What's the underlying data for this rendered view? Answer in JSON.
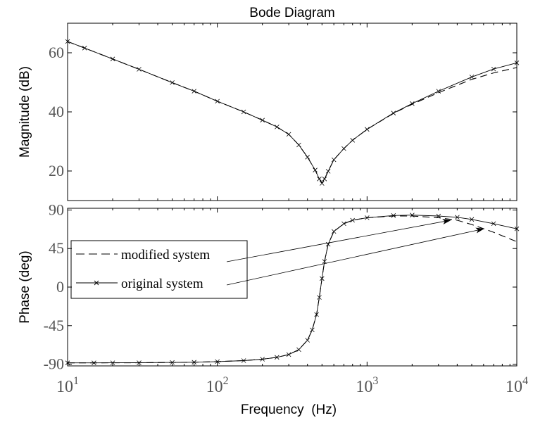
{
  "chart_data": {
    "type": "line",
    "title": "Bode Diagram",
    "xlabel": "Frequency  (Hz)",
    "x_scale": "log",
    "xlim": [
      10,
      10000
    ],
    "x_ticks": [
      {
        "value": 10,
        "base": "10",
        "exp": "1"
      },
      {
        "value": 100,
        "base": "10",
        "exp": "2"
      },
      {
        "value": 1000,
        "base": "10",
        "exp": "3"
      },
      {
        "value": 10000,
        "base": "10",
        "exp": "4"
      }
    ],
    "grid": false,
    "panels": [
      {
        "id": "magnitude",
        "ylabel": "Magnitude (dB)",
        "ylim": [
          10,
          70
        ],
        "y_ticks": [
          20,
          40,
          60
        ],
        "y_tick_labels": [
          "20",
          "40",
          "60"
        ],
        "series": [
          {
            "name": "modified system",
            "style": "dashed",
            "x": [
              10,
              13,
              20,
              30,
              50,
              70,
              100,
              150,
              200,
              250,
              300,
              350,
              400,
              450,
              480,
              500,
              520,
              550,
              600,
              700,
              800,
              1000,
              1500,
              2000,
              3000,
              5000,
              7000,
              10000
            ],
            "y": [
              63.8,
              61.6,
              57.9,
              54.4,
              49.9,
              47.0,
              43.6,
              40.0,
              37.2,
              34.9,
              32.4,
              28.8,
              24.7,
              20.3,
              17.3,
              16.0,
              17.3,
              19.9,
              23.8,
              27.6,
              30.4,
              34.1,
              39.5,
              42.6,
              46.5,
              51.0,
              53.2,
              55.0
            ]
          },
          {
            "name": "original system",
            "style": "solid",
            "marker": "x",
            "x": [
              10,
              13,
              20,
              30,
              50,
              70,
              100,
              150,
              200,
              250,
              300,
              350,
              400,
              450,
              480,
              500,
              520,
              550,
              600,
              700,
              800,
              1000,
              1500,
              2000,
              3000,
              5000,
              7000,
              10000
            ],
            "y": [
              63.8,
              61.6,
              57.9,
              54.4,
              49.9,
              47.0,
              43.6,
              40.0,
              37.2,
              34.9,
              32.4,
              28.8,
              24.7,
              20.3,
              17.3,
              15.8,
              17.3,
              19.9,
              23.8,
              27.6,
              30.4,
              34.1,
              39.6,
              42.8,
              47.0,
              51.8,
              54.5,
              56.6
            ]
          }
        ]
      },
      {
        "id": "phase",
        "ylabel": "Phase (deg)",
        "ylim": [
          -92,
          92
        ],
        "y_ticks": [
          -90,
          -45,
          0,
          45,
          90
        ],
        "y_tick_labels": [
          "-90",
          "-45",
          "0",
          "45",
          "90"
        ],
        "series": [
          {
            "name": "modified system",
            "style": "dashed",
            "x": [
              10,
              15,
              20,
              30,
              50,
              70,
              100,
              150,
              200,
              250,
              300,
              350,
              400,
              430,
              460,
              480,
              500,
              520,
              550,
              600,
              700,
              800,
              1000,
              1500,
              2000,
              3000,
              4000,
              5000,
              7000,
              10000
            ],
            "y": [
              -88.5,
              -88.5,
              -88.4,
              -88.3,
              -88.0,
              -87.7,
              -87.0,
              -85.8,
              -84.2,
              -82.0,
              -78.8,
              -73.0,
              -62.0,
              -50.0,
              -32.0,
              -12.0,
              10.0,
              30.0,
              50.0,
              65.0,
              74.0,
              78.0,
              81.0,
              83.0,
              83.0,
              81.0,
              78.0,
              73.0,
              64.0,
              53.0
            ]
          },
          {
            "name": "original system",
            "style": "solid",
            "marker": "x",
            "x": [
              10,
              15,
              20,
              30,
              50,
              70,
              100,
              150,
              200,
              250,
              300,
              350,
              400,
              430,
              460,
              480,
              500,
              520,
              550,
              600,
              700,
              800,
              1000,
              1500,
              2000,
              3000,
              4000,
              5000,
              7000,
              10000
            ],
            "y": [
              -88.5,
              -88.5,
              -88.4,
              -88.3,
              -88.0,
              -87.7,
              -87.0,
              -85.8,
              -84.2,
              -82.0,
              -78.8,
              -73.0,
              -62.0,
              -50.0,
              -32.0,
              -12.0,
              10.0,
              30.0,
              50.0,
              65.0,
              74.0,
              78.0,
              81.0,
              83.5,
              84.0,
              83.0,
              81.5,
              79.0,
              74.0,
              68.0
            ]
          }
        ]
      }
    ],
    "legend": {
      "placement": "left, phase panel",
      "entries": [
        {
          "label": "modified system",
          "style": "dashed"
        },
        {
          "label": "original system",
          "style": "solid",
          "marker": "x"
        }
      ]
    },
    "annotations": [
      {
        "type": "arrow",
        "from_legend_entry": "modified system",
        "to": {
          "x": 3600,
          "y": 78
        }
      },
      {
        "type": "arrow",
        "from_legend_entry": "original system",
        "to": {
          "x": 6000,
          "y": 68
        }
      }
    ]
  }
}
